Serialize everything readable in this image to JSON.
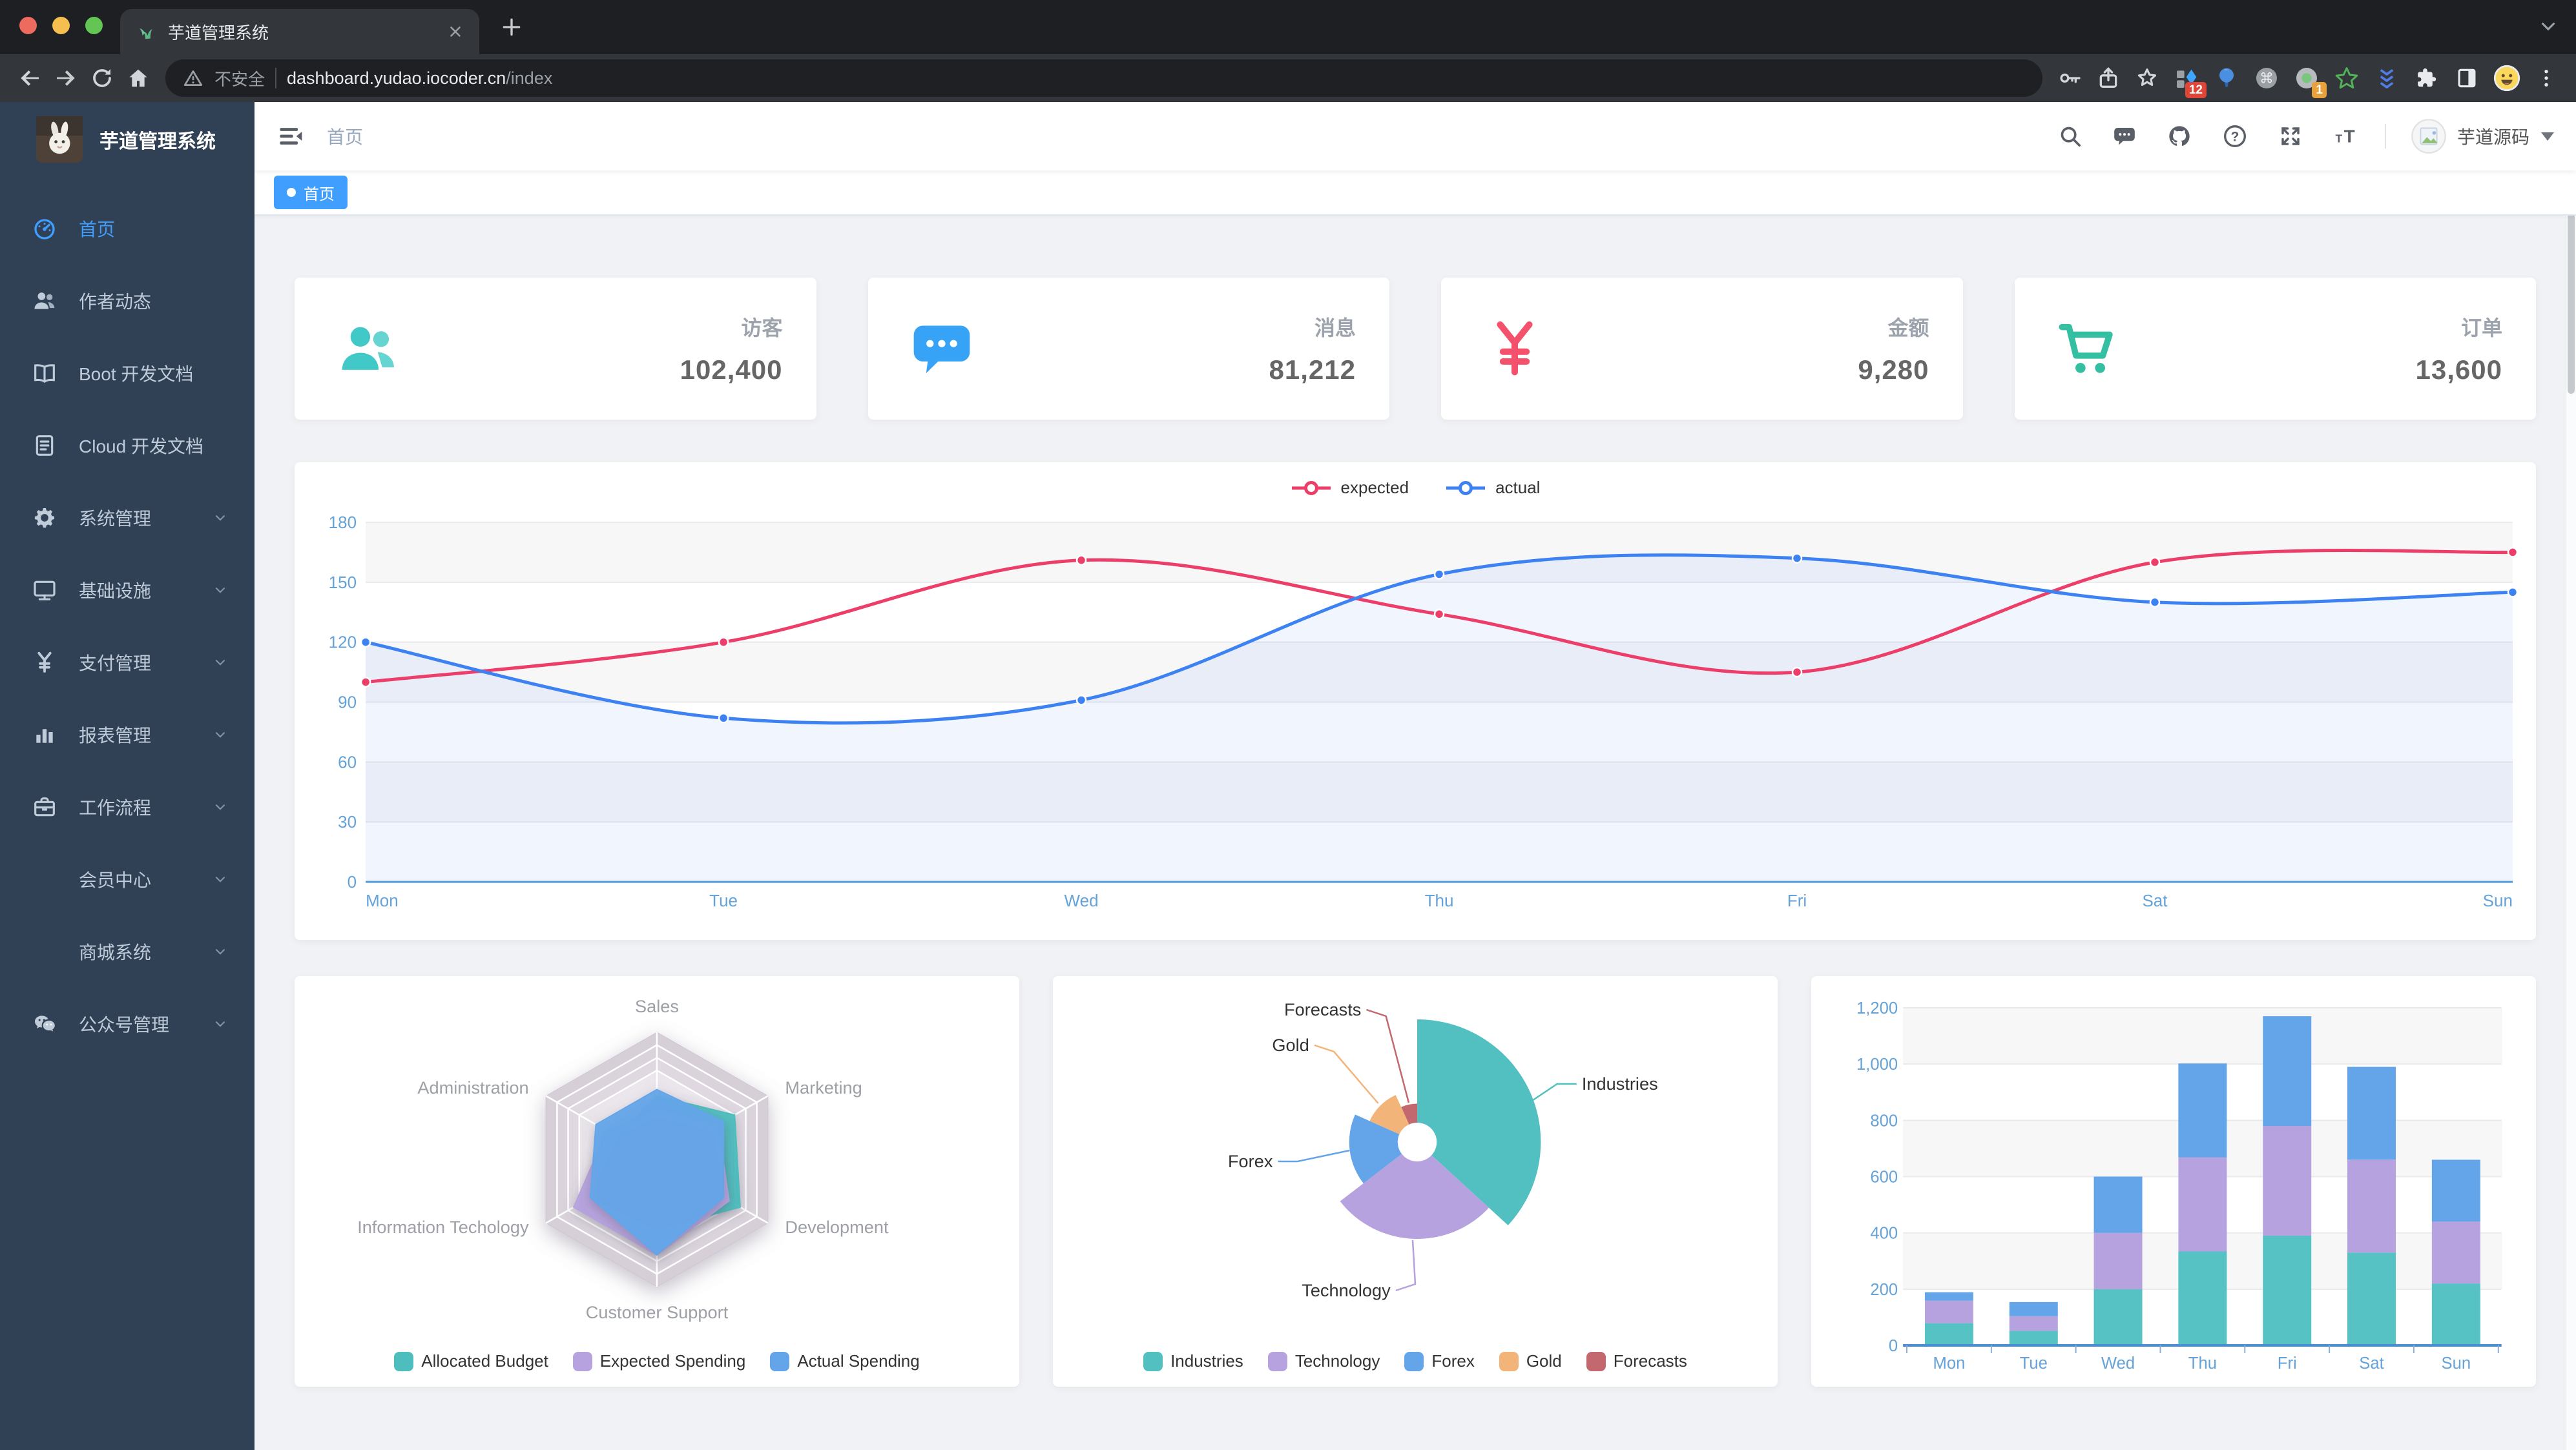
{
  "browser": {
    "tab_title": "芋道管理系统",
    "security_label": "不安全",
    "url_host": "dashboard.yudao.iocoder.cn",
    "url_path": "/index",
    "ext_badge_1": "12",
    "ext_badge_2": "1"
  },
  "sidebar": {
    "logo_title": "芋道管理系统",
    "items": [
      {
        "label": "首页",
        "icon": "dashboard",
        "active": true,
        "chevron": false
      },
      {
        "label": "作者动态",
        "icon": "people",
        "active": false,
        "chevron": false
      },
      {
        "label": "Boot 开发文档",
        "icon": "book",
        "active": false,
        "chevron": false
      },
      {
        "label": "Cloud 开发文档",
        "icon": "document",
        "active": false,
        "chevron": false
      },
      {
        "label": "系统管理",
        "icon": "gear",
        "active": false,
        "chevron": true
      },
      {
        "label": "基础设施",
        "icon": "monitor",
        "active": false,
        "chevron": true
      },
      {
        "label": "支付管理",
        "icon": "money",
        "active": false,
        "chevron": true
      },
      {
        "label": "报表管理",
        "icon": "chart",
        "active": false,
        "chevron": true
      },
      {
        "label": "工作流程",
        "icon": "briefcase",
        "active": false,
        "chevron": true
      },
      {
        "label": "会员中心",
        "icon": null,
        "active": false,
        "chevron": true
      },
      {
        "label": "商城系统",
        "icon": null,
        "active": false,
        "chevron": true
      },
      {
        "label": "公众号管理",
        "icon": "wechat",
        "active": false,
        "chevron": true
      }
    ]
  },
  "navbar": {
    "breadcrumb": "首页",
    "username": "芋道源码"
  },
  "tags_view": {
    "active_tag": "首页"
  },
  "stats": [
    {
      "label": "访客",
      "value": "102,400",
      "icon": "people",
      "color": "#40c9c6"
    },
    {
      "label": "消息",
      "value": "81,212",
      "icon": "message",
      "color": "#36a3f7"
    },
    {
      "label": "金额",
      "value": "9,280",
      "icon": "money",
      "color": "#f4516c"
    },
    {
      "label": "订单",
      "value": "13,600",
      "icon": "cart",
      "color": "#34bfa3"
    }
  ],
  "chart_data": [
    {
      "id": "line",
      "type": "line",
      "title": "weekly expected vs actual",
      "x": [
        "Mon",
        "Tue",
        "Wed",
        "Thu",
        "Fri",
        "Sat",
        "Sun"
      ],
      "series": [
        {
          "name": "expected",
          "color": "#ec3e68",
          "values": [
            100,
            120,
            161,
            134,
            105,
            160,
            165
          ]
        },
        {
          "name": "actual",
          "color": "#3d82f2",
          "values": [
            120,
            82,
            91,
            154,
            162,
            140,
            145
          ]
        }
      ],
      "ylim": [
        0,
        180
      ],
      "ystep": 30,
      "legend_position": "top",
      "grid": true,
      "axis_label_color": "#64a2d8",
      "area_fill_series": "actual"
    },
    {
      "id": "radar",
      "type": "radar",
      "indicators": [
        {
          "name": "Sales",
          "max": 10000
        },
        {
          "name": "Administration",
          "max": 20000
        },
        {
          "name": "Information Techology",
          "max": 20000
        },
        {
          "name": "Customer Support",
          "max": 20000
        },
        {
          "name": "Development",
          "max": 20000
        },
        {
          "name": "Marketing",
          "max": 20000
        }
      ],
      "series": [
        {
          "name": "Allocated Budget",
          "color": "#4dbdbe",
          "values": [
            5000,
            7000,
            12000,
            11000,
            15000,
            14000
          ]
        },
        {
          "name": "Expected Spending",
          "color": "#b6a2de",
          "values": [
            4000,
            9000,
            15000,
            15000,
            13000,
            11000
          ]
        },
        {
          "name": "Actual Spending",
          "color": "#64a5e9",
          "values": [
            5500,
            11000,
            12000,
            15000,
            12000,
            12000
          ]
        }
      ],
      "legend_position": "bottom"
    },
    {
      "id": "pie",
      "type": "pie",
      "rose": true,
      "slices": [
        {
          "name": "Industries",
          "value": 320,
          "color": "#52bfc1"
        },
        {
          "name": "Technology",
          "value": 240,
          "color": "#b6a2de"
        },
        {
          "name": "Forex",
          "value": 149,
          "color": "#64a5e9"
        },
        {
          "name": "Gold",
          "value": 100,
          "color": "#f2b478"
        },
        {
          "name": "Forecasts",
          "value": 59,
          "color": "#c4686f"
        }
      ],
      "legend_position": "bottom"
    },
    {
      "id": "bar",
      "type": "bar",
      "stacked": true,
      "categories": [
        "Mon",
        "Tue",
        "Wed",
        "Thu",
        "Fri",
        "Sat",
        "Sun"
      ],
      "series": [
        {
          "color": "#56c2c3",
          "values": [
            79,
            52,
            200,
            334,
            390,
            330,
            220
          ]
        },
        {
          "color": "#b6a2de",
          "values": [
            80,
            52,
            200,
            334,
            390,
            330,
            220
          ]
        },
        {
          "color": "#64a5e9",
          "values": [
            30,
            50,
            200,
            334,
            390,
            330,
            220
          ]
        }
      ],
      "ylim": [
        0,
        1200
      ],
      "ystep": 200,
      "axis_label_color": "#64a2d8",
      "grid": true,
      "legend_position": "none"
    }
  ]
}
